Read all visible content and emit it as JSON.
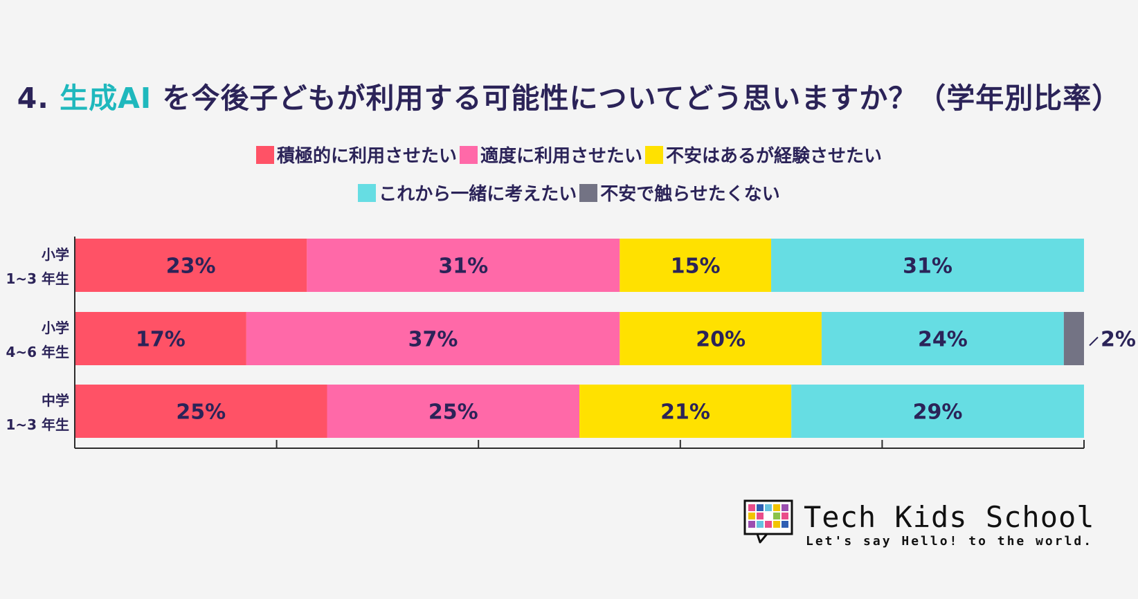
{
  "chart_data": {
    "type": "bar",
    "orientation": "horizontal",
    "stacked": true,
    "title": {
      "prefix": "4. ",
      "accent": "生成AI",
      "rest": " を今後子どもが利用する可能性についてどう思いますか？（学年別比率）"
    },
    "categories": [
      {
        "line1": "小学",
        "line2": "1~3 年生"
      },
      {
        "line1": "小学",
        "line2": "4~6 年生"
      },
      {
        "line1": "中学",
        "line2": "1~3 年生"
      }
    ],
    "series": [
      {
        "name": "積極的に利用させたい",
        "color": "#ff5266",
        "values": [
          23,
          17,
          25
        ]
      },
      {
        "name": "適度に利用させたい",
        "color": "#ff69a8",
        "values": [
          31,
          37,
          25
        ]
      },
      {
        "name": "不安はあるが経験させたい",
        "color": "#ffe100",
        "values": [
          15,
          20,
          21
        ]
      },
      {
        "name": "これから一緒に考えたい",
        "color": "#66dde3",
        "values": [
          31,
          24,
          29
        ]
      },
      {
        "name": "不安で触らせたくない",
        "color": "#737384",
        "values": [
          0,
          2,
          0
        ]
      }
    ],
    "value_suffix": "%",
    "xlim": [
      0,
      100
    ],
    "legend_position": "top"
  },
  "logo": {
    "name": "Tech Kids School",
    "tagline": "Let's say Hello! to the world."
  }
}
